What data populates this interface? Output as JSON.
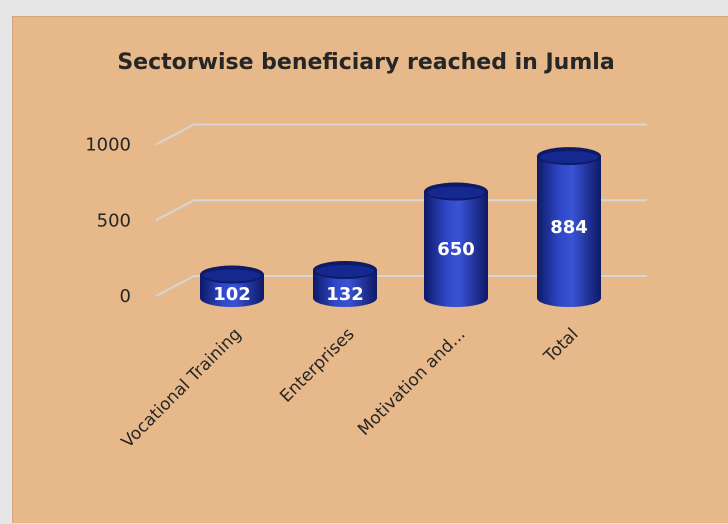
{
  "chart_data": {
    "type": "bar",
    "title": "Sectorwise beneficiary reached in Jumla",
    "categories": [
      "Vocational Training",
      "Enterprises",
      "Motivation and...",
      "Total"
    ],
    "values": [
      102,
      132,
      650,
      884
    ],
    "data_labels": [
      "102",
      "132",
      "650",
      "884"
    ],
    "y_ticks": [
      "0",
      "500",
      "1000"
    ],
    "ylim": [
      0,
      1000
    ],
    "xlabel": "",
    "ylabel": "",
    "grid": true,
    "legend": "none",
    "bar_style": "3d-cylinder",
    "colors": {
      "background": "#e6b88a",
      "bar": "#1a2fa3",
      "bar_dark": "#0d1a66",
      "bar_light": "#3a52d4",
      "gridline": "#d6d6d6",
      "text": "#262626"
    }
  }
}
